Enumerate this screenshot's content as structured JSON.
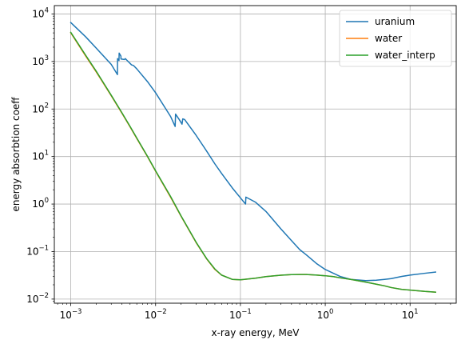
{
  "chart_data": {
    "type": "line",
    "title": "",
    "xlabel": "x-ray energy, MeV",
    "ylabel": "energy absorbtion coeff",
    "xscale": "log",
    "yscale": "log",
    "xlim": [
      0.00064,
      35
    ],
    "ylim": [
      0.0082,
      15000
    ],
    "grid": true,
    "legend_position": "upper-right",
    "x_ticks": [
      {
        "value": 0.001,
        "base": "10",
        "exp": "−3"
      },
      {
        "value": 0.01,
        "base": "10",
        "exp": "−2"
      },
      {
        "value": 0.1,
        "base": "10",
        "exp": "−1"
      },
      {
        "value": 1,
        "base": "10",
        "exp": "0"
      },
      {
        "value": 10,
        "base": "10",
        "exp": "1"
      }
    ],
    "y_ticks": [
      {
        "value": 0.01,
        "base": "10",
        "exp": "−2"
      },
      {
        "value": 0.1,
        "base": "10",
        "exp": "−1"
      },
      {
        "value": 1,
        "base": "10",
        "exp": "0"
      },
      {
        "value": 10,
        "base": "10",
        "exp": "1"
      },
      {
        "value": 100,
        "base": "10",
        "exp": "2"
      },
      {
        "value": 1000,
        "base": "10",
        "exp": "3"
      },
      {
        "value": 10000,
        "base": "10",
        "exp": "4"
      }
    ],
    "series": [
      {
        "name": "uranium",
        "color": "#1f77b4",
        "points": [
          [
            0.001,
            6600
          ],
          [
            0.0015,
            3300
          ],
          [
            0.002,
            1900
          ],
          [
            0.003,
            870
          ],
          [
            0.00355,
            530
          ],
          [
            0.00356,
            1150
          ],
          [
            0.0037,
            1050
          ],
          [
            0.00372,
            1500
          ],
          [
            0.0039,
            1300
          ],
          [
            0.00391,
            1130
          ],
          [
            0.0043,
            1100
          ],
          [
            0.0044,
            1150
          ],
          [
            0.0045,
            1100
          ],
          [
            0.0052,
            850
          ],
          [
            0.0055,
            820
          ],
          [
            0.006,
            700
          ],
          [
            0.008,
            380
          ],
          [
            0.01,
            220
          ],
          [
            0.015,
            70
          ],
          [
            0.017,
            43
          ],
          [
            0.0172,
            78
          ],
          [
            0.019,
            60
          ],
          [
            0.0205,
            48
          ],
          [
            0.0209,
            62
          ],
          [
            0.022,
            60
          ],
          [
            0.03,
            28
          ],
          [
            0.04,
            13
          ],
          [
            0.05,
            7
          ],
          [
            0.06,
            4.4
          ],
          [
            0.08,
            2.2
          ],
          [
            0.1,
            1.35
          ],
          [
            0.115,
            1.0
          ],
          [
            0.116,
            1.4
          ],
          [
            0.15,
            1.1
          ],
          [
            0.2,
            0.7
          ],
          [
            0.3,
            0.3
          ],
          [
            0.4,
            0.17
          ],
          [
            0.5,
            0.11
          ],
          [
            0.6,
            0.085
          ],
          [
            0.8,
            0.055
          ],
          [
            1.0,
            0.042
          ],
          [
            1.5,
            0.03
          ],
          [
            2.0,
            0.026
          ],
          [
            3.0,
            0.0245
          ],
          [
            4.0,
            0.025
          ],
          [
            5.0,
            0.026
          ],
          [
            6.0,
            0.027
          ],
          [
            8.0,
            0.03
          ],
          [
            10.0,
            0.032
          ],
          [
            15.0,
            0.035
          ],
          [
            20.0,
            0.037
          ]
        ]
      },
      {
        "name": "water",
        "color": "#ff7f0e",
        "points": [
          [
            0.001,
            4000
          ],
          [
            0.0015,
            1300
          ],
          [
            0.002,
            600
          ],
          [
            0.003,
            190
          ],
          [
            0.004,
            82
          ],
          [
            0.005,
            42
          ],
          [
            0.006,
            24
          ],
          [
            0.008,
            10
          ],
          [
            0.01,
            4.9
          ],
          [
            0.015,
            1.4
          ],
          [
            0.02,
            0.55
          ],
          [
            0.03,
            0.155
          ],
          [
            0.04,
            0.07
          ],
          [
            0.05,
            0.042
          ],
          [
            0.06,
            0.032
          ],
          [
            0.08,
            0.026
          ],
          [
            0.1,
            0.0255
          ],
          [
            0.15,
            0.0275
          ],
          [
            0.2,
            0.0297
          ],
          [
            0.3,
            0.0319
          ],
          [
            0.4,
            0.0328
          ],
          [
            0.5,
            0.033
          ],
          [
            0.6,
            0.0329
          ],
          [
            0.8,
            0.032
          ],
          [
            1.0,
            0.031
          ],
          [
            1.25,
            0.0297
          ],
          [
            1.5,
            0.028
          ],
          [
            2.0,
            0.026
          ],
          [
            3.0,
            0.0228
          ],
          [
            4.0,
            0.0206
          ],
          [
            5.0,
            0.019
          ],
          [
            6.0,
            0.0175
          ],
          [
            8.0,
            0.016
          ],
          [
            10.0,
            0.0155
          ],
          [
            15.0,
            0.0145
          ],
          [
            20.0,
            0.014
          ]
        ]
      },
      {
        "name": "water_interp",
        "color": "#2ca02c",
        "points": [
          [
            0.001,
            4100
          ],
          [
            0.0015,
            1350
          ],
          [
            0.002,
            620
          ],
          [
            0.003,
            195
          ],
          [
            0.004,
            84
          ],
          [
            0.005,
            43
          ],
          [
            0.006,
            24.5
          ],
          [
            0.008,
            10.2
          ],
          [
            0.01,
            5.0
          ],
          [
            0.015,
            1.45
          ],
          [
            0.02,
            0.56
          ],
          [
            0.03,
            0.158
          ],
          [
            0.04,
            0.071
          ],
          [
            0.05,
            0.043
          ],
          [
            0.06,
            0.032
          ],
          [
            0.08,
            0.026
          ],
          [
            0.1,
            0.0255
          ],
          [
            0.15,
            0.0275
          ],
          [
            0.2,
            0.0297
          ],
          [
            0.3,
            0.0319
          ],
          [
            0.4,
            0.0328
          ],
          [
            0.5,
            0.033
          ],
          [
            0.6,
            0.0329
          ],
          [
            0.8,
            0.032
          ],
          [
            1.0,
            0.031
          ],
          [
            1.25,
            0.0297
          ],
          [
            1.5,
            0.028
          ],
          [
            2.0,
            0.026
          ],
          [
            3.0,
            0.0228
          ],
          [
            4.0,
            0.0206
          ],
          [
            5.0,
            0.019
          ],
          [
            6.0,
            0.0175
          ],
          [
            8.0,
            0.016
          ],
          [
            10.0,
            0.0155
          ],
          [
            15.0,
            0.0145
          ],
          [
            20.0,
            0.014
          ]
        ]
      }
    ]
  }
}
